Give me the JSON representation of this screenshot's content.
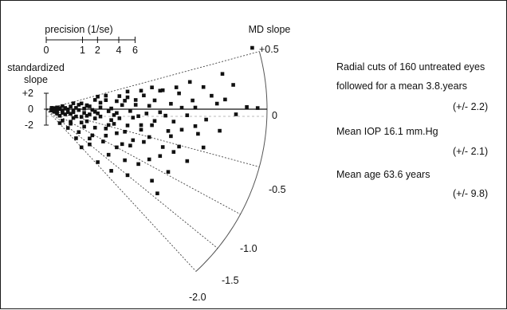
{
  "chart_data": {
    "type": "scatter",
    "title": "",
    "precision_scale": {
      "label": "precision (1/se)",
      "ticks": [
        "0",
        "1",
        "2",
        "4",
        "6"
      ],
      "tick_values": [
        0,
        1,
        2,
        4,
        6
      ]
    },
    "standardized_slope_scale": {
      "label_line1": "standardized",
      "label_line2": "slope",
      "ticks": [
        "+2",
        "0",
        "-2"
      ],
      "tick_values": [
        2,
        0,
        -2
      ]
    },
    "md_slope_scale": {
      "label": "MD slope",
      "ticks": [
        "+0.5",
        "0",
        "-0.5",
        "-1.0",
        "-1.5",
        "-2.0"
      ],
      "tick_values": [
        0.5,
        0,
        -0.5,
        -1.0,
        -1.5,
        -2.0
      ]
    },
    "points": [
      {
        "precision": 7.6,
        "slope": 0.55
      },
      {
        "precision": 6.5,
        "slope": 0.37
      },
      {
        "precision": 4.8,
        "slope": 0.31
      },
      {
        "precision": 6.9,
        "slope": 0.24
      },
      {
        "precision": 7.8,
        "slope": 0.01
      },
      {
        "precision": 7.4,
        "slope": 0.02
      },
      {
        "precision": 5.8,
        "slope": 0.26
      },
      {
        "precision": 4.3,
        "slope": 0.3
      },
      {
        "precision": 3.0,
        "slope": 0.4
      },
      {
        "precision": 3.5,
        "slope": 0.36
      },
      {
        "precision": 2.7,
        "slope": 0.33
      },
      {
        "precision": 2.2,
        "slope": 0.42
      },
      {
        "precision": 1.8,
        "slope": 0.35
      },
      {
        "precision": 1.3,
        "slope": 0.3
      },
      {
        "precision": 1.5,
        "slope": 0.18
      },
      {
        "precision": 0.9,
        "slope": 0.2
      },
      {
        "precision": 2.6,
        "slope": 0.21
      },
      {
        "precision": 3.3,
        "slope": 0.19
      },
      {
        "precision": 4.0,
        "slope": 0.15
      },
      {
        "precision": 4.6,
        "slope": 0.08
      },
      {
        "precision": 5.4,
        "slope": 0.11
      },
      {
        "precision": 6.3,
        "slope": 0.06
      },
      {
        "precision": 6.6,
        "slope": 0.1
      },
      {
        "precision": 5.0,
        "slope": 0.02
      },
      {
        "precision": 3.8,
        "slope": 0.06
      },
      {
        "precision": 2.8,
        "slope": 0.1
      },
      {
        "precision": 2.0,
        "slope": 0.06
      },
      {
        "precision": 1.6,
        "slope": 0.12
      },
      {
        "precision": 1.1,
        "slope": 0.08
      },
      {
        "precision": 0.7,
        "slope": 0.05
      },
      {
        "precision": 0.5,
        "slope": 0.15
      },
      {
        "precision": 0.3,
        "slope": 0.25
      },
      {
        "precision": 0.4,
        "slope": 0.3
      },
      {
        "precision": 0.8,
        "slope": -0.02
      },
      {
        "precision": 1.2,
        "slope": -0.05
      },
      {
        "precision": 1.7,
        "slope": -0.03
      },
      {
        "precision": 2.3,
        "slope": -0.06
      },
      {
        "precision": 3.1,
        "slope": -0.04
      },
      {
        "precision": 4.2,
        "slope": -0.05
      },
      {
        "precision": 5.2,
        "slope": -0.08
      },
      {
        "precision": 0.6,
        "slope": -0.15
      },
      {
        "precision": 1.0,
        "slope": -0.2
      },
      {
        "precision": 1.4,
        "slope": -0.18
      },
      {
        "precision": 1.9,
        "slope": -0.15
      },
      {
        "precision": 2.5,
        "slope": -0.16
      },
      {
        "precision": 3.4,
        "slope": -0.14
      },
      {
        "precision": 4.0,
        "slope": -0.2
      },
      {
        "precision": 4.7,
        "slope": -0.18
      },
      {
        "precision": 5.5,
        "slope": -0.21
      },
      {
        "precision": 6.4,
        "slope": -0.23
      },
      {
        "precision": 0.4,
        "slope": -0.3
      },
      {
        "precision": 0.9,
        "slope": -0.35
      },
      {
        "precision": 1.3,
        "slope": -0.4
      },
      {
        "precision": 1.8,
        "slope": -0.35
      },
      {
        "precision": 2.4,
        "slope": -0.31
      },
      {
        "precision": 3.0,
        "slope": -0.37
      },
      {
        "precision": 3.5,
        "slope": -0.31
      },
      {
        "precision": 4.5,
        "slope": -0.33
      },
      {
        "precision": 5.6,
        "slope": -0.3
      },
      {
        "precision": 2.3,
        "slope": -0.47
      },
      {
        "precision": 2.9,
        "slope": -0.53
      },
      {
        "precision": 3.8,
        "slope": -0.5
      },
      {
        "precision": 4.9,
        "slope": -0.52
      },
      {
        "precision": 5.8,
        "slope": -0.45
      },
      {
        "precision": 2.6,
        "slope": -0.63
      },
      {
        "precision": 3.2,
        "slope": -0.66
      },
      {
        "precision": 4.3,
        "slope": -0.6
      },
      {
        "precision": 3.1,
        "slope": -0.8
      },
      {
        "precision": 3.8,
        "slope": -0.9
      },
      {
        "precision": 4.2,
        "slope": -0.76
      },
      {
        "precision": 0.3,
        "slope": -0.6
      },
      {
        "precision": 0.5,
        "slope": -0.9
      },
      {
        "precision": 0.2,
        "slope": -0.45
      },
      {
        "precision": 0.7,
        "slope": -0.5
      },
      {
        "precision": 1.0,
        "slope": -0.6
      },
      {
        "precision": 1.5,
        "slope": -0.55
      },
      {
        "precision": 1.8,
        "slope": -0.7
      },
      {
        "precision": 1.4,
        "slope": -0.85
      },
      {
        "precision": 2.1,
        "slope": -1.05
      },
      {
        "precision": 2.6,
        "slope": -1.0
      },
      {
        "precision": 2.9,
        "slope": -1.2
      },
      {
        "precision": 3.4,
        "slope": -1.1
      },
      {
        "precision": 3.9,
        "slope": -1.25
      },
      {
        "precision": 4.1,
        "slope": -1.4
      },
      {
        "precision": 2.2,
        "slope": -0.82
      },
      {
        "precision": 0.9,
        "slope": -1.1
      },
      {
        "precision": 1.2,
        "slope": -1.3
      },
      {
        "precision": 0.6,
        "slope": -1.3
      },
      {
        "precision": 1.6,
        "slope": -1.5
      },
      {
        "precision": 0.8,
        "slope": -1.6
      },
      {
        "precision": 1.1,
        "slope": -1.8
      },
      {
        "precision": 1.9,
        "slope": -1.9
      },
      {
        "precision": 2.4,
        "slope": -1.75
      },
      {
        "precision": 5.2,
        "slope": -0.68
      },
      {
        "precision": 4.5,
        "slope": -0.95
      },
      {
        "precision": 3.5,
        "slope": -0.4
      },
      {
        "precision": 2.0,
        "slope": -0.25
      },
      {
        "precision": 0.5,
        "slope": 0.0
      },
      {
        "precision": 0.3,
        "slope": -0.15
      },
      {
        "precision": 1.2,
        "slope": 0.25
      },
      {
        "precision": 2.0,
        "slope": 0.22
      },
      {
        "precision": 3.6,
        "slope": 0.26
      },
      {
        "precision": 1.6,
        "slope": -0.22
      },
      {
        "precision": 2.7,
        "slope": -0.23
      },
      {
        "precision": 3.9,
        "slope": -0.28
      },
      {
        "precision": 2.2,
        "slope": -0.6
      },
      {
        "precision": 1.3,
        "slope": -0.7
      },
      {
        "precision": 2.8,
        "slope": -0.85
      },
      {
        "precision": 1.7,
        "slope": -1.05
      },
      {
        "precision": 0.4,
        "slope": -0.75
      },
      {
        "precision": 4.2,
        "slope": 0.3
      },
      {
        "precision": 4.9,
        "slope": 0.22
      },
      {
        "precision": 5.5,
        "slope": 0.02
      },
      {
        "precision": 3.3,
        "slope": 0.09
      },
      {
        "precision": 2.4,
        "slope": 0.02
      },
      {
        "precision": 1.4,
        "slope": 0.03
      },
      {
        "precision": 0.6,
        "slope": 0.35
      },
      {
        "precision": 1.0,
        "slope": 0.4
      },
      {
        "precision": 0.6,
        "slope": -0.42
      },
      {
        "precision": 1.1,
        "slope": -0.45
      },
      {
        "precision": 3.2,
        "slope": -0.18
      },
      {
        "precision": 4.6,
        "slope": -0.4
      },
      {
        "precision": 5.0,
        "slope": -0.28
      },
      {
        "precision": 3.6,
        "slope": -0.62
      },
      {
        "precision": 2.5,
        "slope": -0.4
      },
      {
        "precision": 1.5,
        "slope": -0.3
      },
      {
        "precision": 0.8,
        "slope": -0.25
      },
      {
        "precision": 0.4,
        "slope": 0.1
      },
      {
        "precision": 0.2,
        "slope": 0.45
      },
      {
        "precision": 1.9,
        "slope": 0.45
      },
      {
        "precision": 2.9,
        "slope": 0.2
      },
      {
        "precision": 6.1,
        "slope": 0.15
      },
      {
        "precision": 7.0,
        "slope": -0.05
      },
      {
        "precision": 5.9,
        "slope": -0.12
      },
      {
        "precision": 4.4,
        "slope": -0.1
      },
      {
        "precision": 3.7,
        "slope": -0.08
      },
      {
        "precision": 2.6,
        "slope": -0.1
      },
      {
        "precision": 1.8,
        "slope": -0.1
      },
      {
        "precision": 1.0,
        "slope": -0.08
      },
      {
        "precision": 0.7,
        "slope": 0.12
      },
      {
        "precision": 1.5,
        "slope": 0.15
      },
      {
        "precision": 2.2,
        "slope": 0.28
      },
      {
        "precision": 3.0,
        "slope": 0.27
      },
      {
        "precision": 3.9,
        "slope": 0.38
      },
      {
        "precision": 5.3,
        "slope": 0.35
      },
      {
        "precision": 0.9,
        "slope": -0.95
      },
      {
        "precision": 1.6,
        "slope": -1.25
      },
      {
        "precision": 2.3,
        "slope": -1.35
      },
      {
        "precision": 3.0,
        "slope": -1.5
      },
      {
        "precision": 0.5,
        "slope": -1.9
      },
      {
        "precision": 1.3,
        "slope": -2.0
      },
      {
        "precision": 4.7,
        "slope": -0.62
      }
    ]
  },
  "annotations": {
    "line1": "Radial cuts of 160 untreated eyes",
    "line2": "followed for a mean 3.8.years",
    "line3": "(+/- 2.2)",
    "line4": "Mean IOP 16.1 mm.Hg",
    "line5": "(+/- 2.1)",
    "line6": "Mean age 63.6 years",
    "line7": "(+/- 9.8)"
  }
}
